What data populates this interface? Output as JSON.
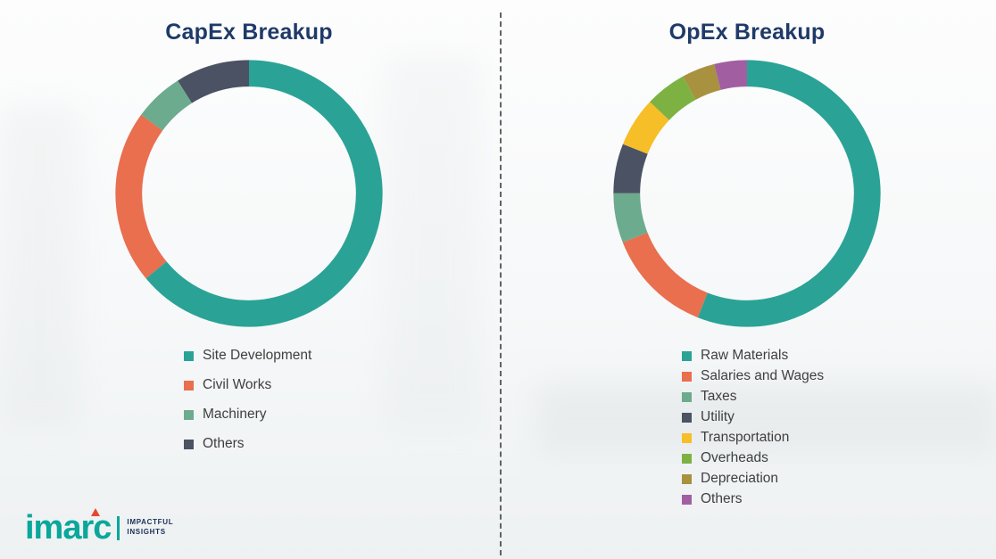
{
  "theme": {
    "title_color": "#1F3A68",
    "legend_text": "#3F3F3F",
    "divider_color": "#4A4A4A",
    "logo_teal": "#0AA79B",
    "logo_red": "#E8472F",
    "logo_navy": "#1A2E57"
  },
  "chart_data": [
    {
      "type": "pie",
      "donut": true,
      "title": "CapEx Breakup",
      "labels": [
        "Site Development",
        "Civil Works",
        "Machinery",
        "Others"
      ],
      "values": [
        64,
        21,
        6,
        9
      ],
      "colors": [
        "#2AA396",
        "#E96F4E",
        "#6CAB8D",
        "#4A5263"
      ],
      "legend_position": "bottom",
      "start_angle_deg": 0,
      "direction": "clockwise"
    },
    {
      "type": "pie",
      "donut": true,
      "title": "OpEx Breakup",
      "labels": [
        "Raw Materials",
        "Salaries and Wages",
        "Taxes",
        "Utility",
        "Transportation",
        "Overheads",
        "Depreciation",
        "Others"
      ],
      "values": [
        56,
        13,
        6,
        6,
        6,
        5,
        4,
        4
      ],
      "colors": [
        "#2AA396",
        "#E96F4E",
        "#6CAB8D",
        "#4A5263",
        "#F6BE27",
        "#7DB243",
        "#A8913F",
        "#A15FA2"
      ],
      "legend_position": "bottom",
      "start_angle_deg": 0,
      "direction": "clockwise"
    }
  ],
  "logo": {
    "text": "imarc",
    "tagline_1": "IMPACTFUL",
    "tagline_2": "INSIGHTS"
  }
}
